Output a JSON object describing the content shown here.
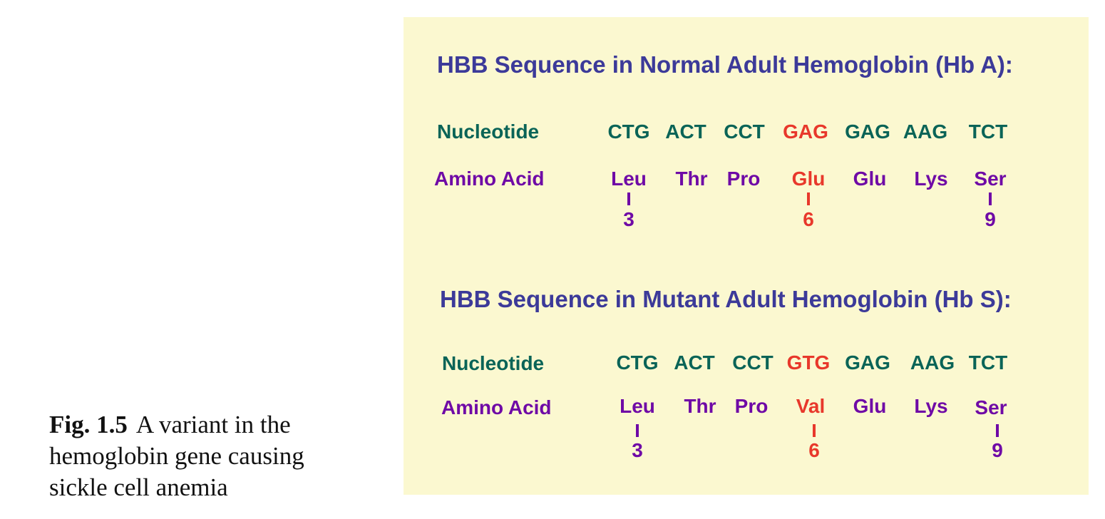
{
  "caption": {
    "label": "Fig. 1.5",
    "text": "A variant in the hemoglobin gene causing sickle cell anemia"
  },
  "normal": {
    "title": "HBB Sequence in Normal Adult Hemoglobin (Hb A):",
    "nucleotide_label": "Nucleotide",
    "amino_acid_label": "Amino Acid",
    "codons": [
      "CTG",
      "ACT",
      "CCT",
      "GAG",
      "GAG",
      "AAG",
      "TCT"
    ],
    "amino_acids": [
      "Leu",
      "Thr",
      "Pro",
      "Glu",
      "Glu",
      "Lys",
      "Ser"
    ],
    "positions": [
      "3",
      "6",
      "9"
    ],
    "highlight_index": 3
  },
  "mutant": {
    "title": "HBB Sequence in Mutant Adult Hemoglobin (Hb S):",
    "nucleotide_label": "Nucleotide",
    "amino_acid_label": "Amino Acid",
    "codons": [
      "CTG",
      "ACT",
      "CCT",
      "GTG",
      "GAG",
      "AAG",
      "TCT"
    ],
    "amino_acids": [
      "Leu",
      "Thr",
      "Pro",
      "Val",
      "Glu",
      "Lys",
      "Ser"
    ],
    "positions": [
      "3",
      "6",
      "9"
    ],
    "highlight_index": 3
  },
  "colors": {
    "title": "#3c3a99",
    "nucleotide": "#0a6457",
    "amino_acid": "#6f0aa6",
    "highlight": "#e8382b",
    "panel_background": "#fbf8d0"
  }
}
